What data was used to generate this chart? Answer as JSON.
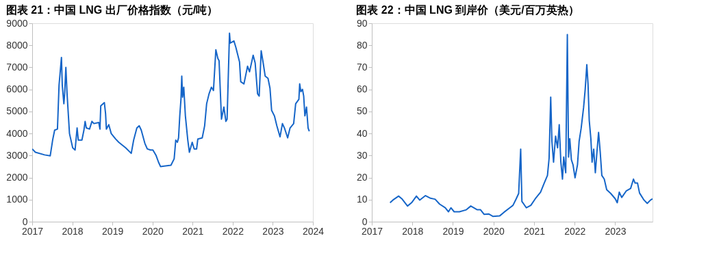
{
  "chart_data": [
    {
      "type": "line",
      "title": "图表 21：中国 LNG 出厂价格指数（元/吨）",
      "xlim": [
        2017,
        2024
      ],
      "xticks": [
        2017,
        2018,
        2019,
        2020,
        2021,
        2022,
        2023,
        2024
      ],
      "ylim": [
        0,
        9000
      ],
      "yticks": [
        0,
        1000,
        2000,
        3000,
        4000,
        5000,
        6000,
        7000,
        8000,
        9000
      ],
      "grid": false,
      "series": [
        {
          "color": "#1565c8",
          "x": [
            2017.0,
            2017.08,
            2017.31,
            2017.45,
            2017.51,
            2017.56,
            2017.63,
            2017.67,
            2017.73,
            2017.75,
            2017.79,
            2017.81,
            2017.84,
            2017.87,
            2017.93,
            2018.01,
            2018.07,
            2018.12,
            2018.15,
            2018.24,
            2018.29,
            2018.32,
            2018.35,
            2018.43,
            2018.49,
            2018.54,
            2018.66,
            2018.69,
            2018.71,
            2018.77,
            2018.8,
            2018.83,
            2018.85,
            2018.91,
            2018.97,
            2019.08,
            2019.16,
            2019.33,
            2019.47,
            2019.53,
            2019.61,
            2019.67,
            2019.72,
            2019.81,
            2019.87,
            2019.95,
            2020.01,
            2020.09,
            2020.15,
            2020.2,
            2020.29,
            2020.46,
            2020.54,
            2020.58,
            2020.62,
            2020.65,
            2020.68,
            2020.71,
            2020.73,
            2020.75,
            2020.78,
            2020.82,
            2020.88,
            2020.92,
            2020.99,
            2021.04,
            2021.1,
            2021.13,
            2021.24,
            2021.3,
            2021.35,
            2021.41,
            2021.47,
            2021.52,
            2021.58,
            2021.63,
            2021.66,
            2021.72,
            2021.78,
            2021.83,
            2021.86,
            2021.92,
            2021.94,
            2022.03,
            2022.08,
            2022.17,
            2022.2,
            2022.28,
            2022.37,
            2022.42,
            2022.51,
            2022.56,
            2022.62,
            2022.66,
            2022.71,
            2022.76,
            2022.81,
            2022.88,
            2022.93,
            2022.97,
            2023.04,
            2023.1,
            2023.18,
            2023.24,
            2023.29,
            2023.37,
            2023.43,
            2023.52,
            2023.57,
            2023.65,
            2023.67,
            2023.7,
            2023.74,
            2023.77,
            2023.8,
            2023.84,
            2023.88,
            2023.91
          ],
          "values": [
            3300,
            3150,
            3030,
            2990,
            3700,
            4150,
            4200,
            6200,
            7450,
            6200,
            5350,
            5800,
            7000,
            5800,
            4000,
            3350,
            3250,
            4250,
            3700,
            3700,
            4150,
            4550,
            4250,
            4200,
            4550,
            4450,
            4500,
            4200,
            5250,
            5350,
            5400,
            4900,
            4200,
            4400,
            4000,
            3750,
            3600,
            3350,
            3100,
            3700,
            4250,
            4350,
            4150,
            3550,
            3300,
            3250,
            3250,
            3000,
            2700,
            2500,
            2520,
            2560,
            2850,
            3700,
            3600,
            3800,
            4800,
            5550,
            6600,
            5650,
            6100,
            4800,
            3700,
            3150,
            3600,
            3300,
            3300,
            3750,
            3800,
            4350,
            5350,
            5800,
            6100,
            5950,
            7800,
            7400,
            7300,
            4650,
            5200,
            4550,
            4650,
            8550,
            8100,
            8200,
            7900,
            7250,
            6350,
            6250,
            7050,
            6800,
            7550,
            7200,
            5800,
            5700,
            7750,
            7200,
            6600,
            6500,
            6050,
            5050,
            4800,
            4350,
            3850,
            4450,
            4250,
            3800,
            4250,
            4450,
            5350,
            5550,
            6250,
            5900,
            6000,
            5700,
            4800,
            5200,
            4250,
            4100
          ]
        }
      ]
    },
    {
      "type": "line",
      "title": "图表 22：中国 LNG 到岸价（美元/百万英热）",
      "xlim": [
        2017,
        2023.92
      ],
      "xticks": [
        2017,
        2018,
        2019,
        2020,
        2021,
        2022,
        2023
      ],
      "ylim": [
        0,
        90
      ],
      "yticks": [
        0,
        10,
        20,
        30,
        40,
        50,
        60,
        70,
        80,
        90
      ],
      "grid": false,
      "series": [
        {
          "color": "#1565c8",
          "x": [
            2017.45,
            2017.52,
            2017.66,
            2017.74,
            2017.88,
            2017.98,
            2018.1,
            2018.18,
            2018.32,
            2018.45,
            2018.56,
            2018.67,
            2018.81,
            2018.89,
            2018.95,
            2019.03,
            2019.16,
            2019.33,
            2019.44,
            2019.6,
            2019.68,
            2019.77,
            2019.88,
            2019.99,
            2020.15,
            2020.26,
            2020.4,
            2020.48,
            2020.56,
            2020.62,
            2020.64,
            2020.67,
            2020.7,
            2020.81,
            2020.92,
            2021.03,
            2021.16,
            2021.25,
            2021.33,
            2021.37,
            2021.41,
            2021.44,
            2021.48,
            2021.53,
            2021.58,
            2021.62,
            2021.66,
            2021.7,
            2021.73,
            2021.78,
            2021.82,
            2021.85,
            2021.88,
            2021.92,
            2021.96,
            2022.01,
            2022.07,
            2022.11,
            2022.16,
            2022.22,
            2022.26,
            2022.3,
            2022.33,
            2022.36,
            2022.4,
            2022.43,
            2022.47,
            2022.51,
            2022.55,
            2022.59,
            2022.63,
            2022.67,
            2022.73,
            2022.79,
            2022.89,
            2023.0,
            2023.05,
            2023.1,
            2023.16,
            2023.27,
            2023.38,
            2023.45,
            2023.49,
            2023.55,
            2023.6,
            2023.71,
            2023.79,
            2023.87,
            2023.92
          ],
          "values": [
            8.6,
            9.8,
            11.6,
            10.4,
            7.1,
            8.6,
            11.6,
            9.8,
            11.8,
            10.6,
            10.2,
            8.0,
            6.3,
            4.5,
            6.3,
            4.5,
            4.5,
            5.4,
            7.1,
            5.4,
            5.4,
            3.3,
            3.5,
            2.4,
            2.6,
            4.3,
            6.3,
            7.4,
            10.4,
            12.8,
            21.0,
            32.9,
            9.2,
            6.3,
            7.4,
            10.4,
            13.4,
            17.5,
            21.0,
            28.7,
            56.5,
            36.4,
            27.0,
            38.8,
            33.5,
            44.0,
            27.0,
            19.3,
            29.3,
            22.2,
            84.9,
            29.3,
            37.6,
            28.1,
            25.8,
            19.9,
            25.8,
            36.4,
            42.3,
            51.7,
            60.0,
            71.2,
            62.4,
            45.9,
            37.6,
            27.0,
            32.9,
            22.2,
            31.7,
            40.5,
            31.7,
            21.0,
            19.3,
            14.5,
            12.8,
            10.4,
            8.6,
            13.4,
            11.0,
            13.9,
            15.1,
            19.3,
            17.5,
            17.5,
            13.0,
            9.8,
            8.3,
            9.8,
            10.4
          ]
        }
      ]
    }
  ]
}
